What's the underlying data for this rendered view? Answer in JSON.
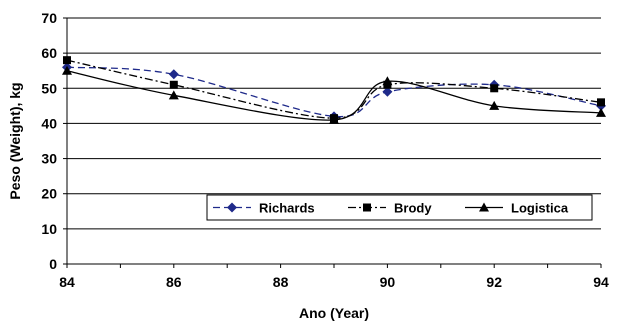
{
  "chart_data": {
    "type": "line",
    "xlabel": "Ano (Year)",
    "ylabel": "Peso (Weight), kg",
    "xlim": [
      84,
      94
    ],
    "ylim": [
      0,
      70
    ],
    "x_ticks": [
      "84",
      "86",
      "88",
      "90",
      "92",
      "94"
    ],
    "y_ticks": [
      "0",
      "10",
      "20",
      "30",
      "40",
      "50",
      "60",
      "70"
    ],
    "grid": "horizontal",
    "legend_position": "bottom-right",
    "series": [
      {
        "name": "Richards",
        "marker": "diamond",
        "line_style": "dashed",
        "color": "#1f2a8a",
        "x": [
          84,
          86,
          89,
          90,
          92,
          94
        ],
        "y": [
          56,
          54,
          42,
          49,
          51,
          45
        ]
      },
      {
        "name": "Brody",
        "marker": "square",
        "line_style": "dash-dot",
        "color": "#000000",
        "x": [
          84,
          86,
          89,
          90,
          92,
          94
        ],
        "y": [
          58,
          51,
          41.5,
          51,
          50,
          46
        ]
      },
      {
        "name": "Logistica",
        "marker": "triangle",
        "line_style": "solid",
        "color": "#000000",
        "x": [
          84,
          86,
          89,
          90,
          92,
          94
        ],
        "y": [
          55,
          48,
          41,
          52,
          45,
          43
        ]
      }
    ]
  }
}
